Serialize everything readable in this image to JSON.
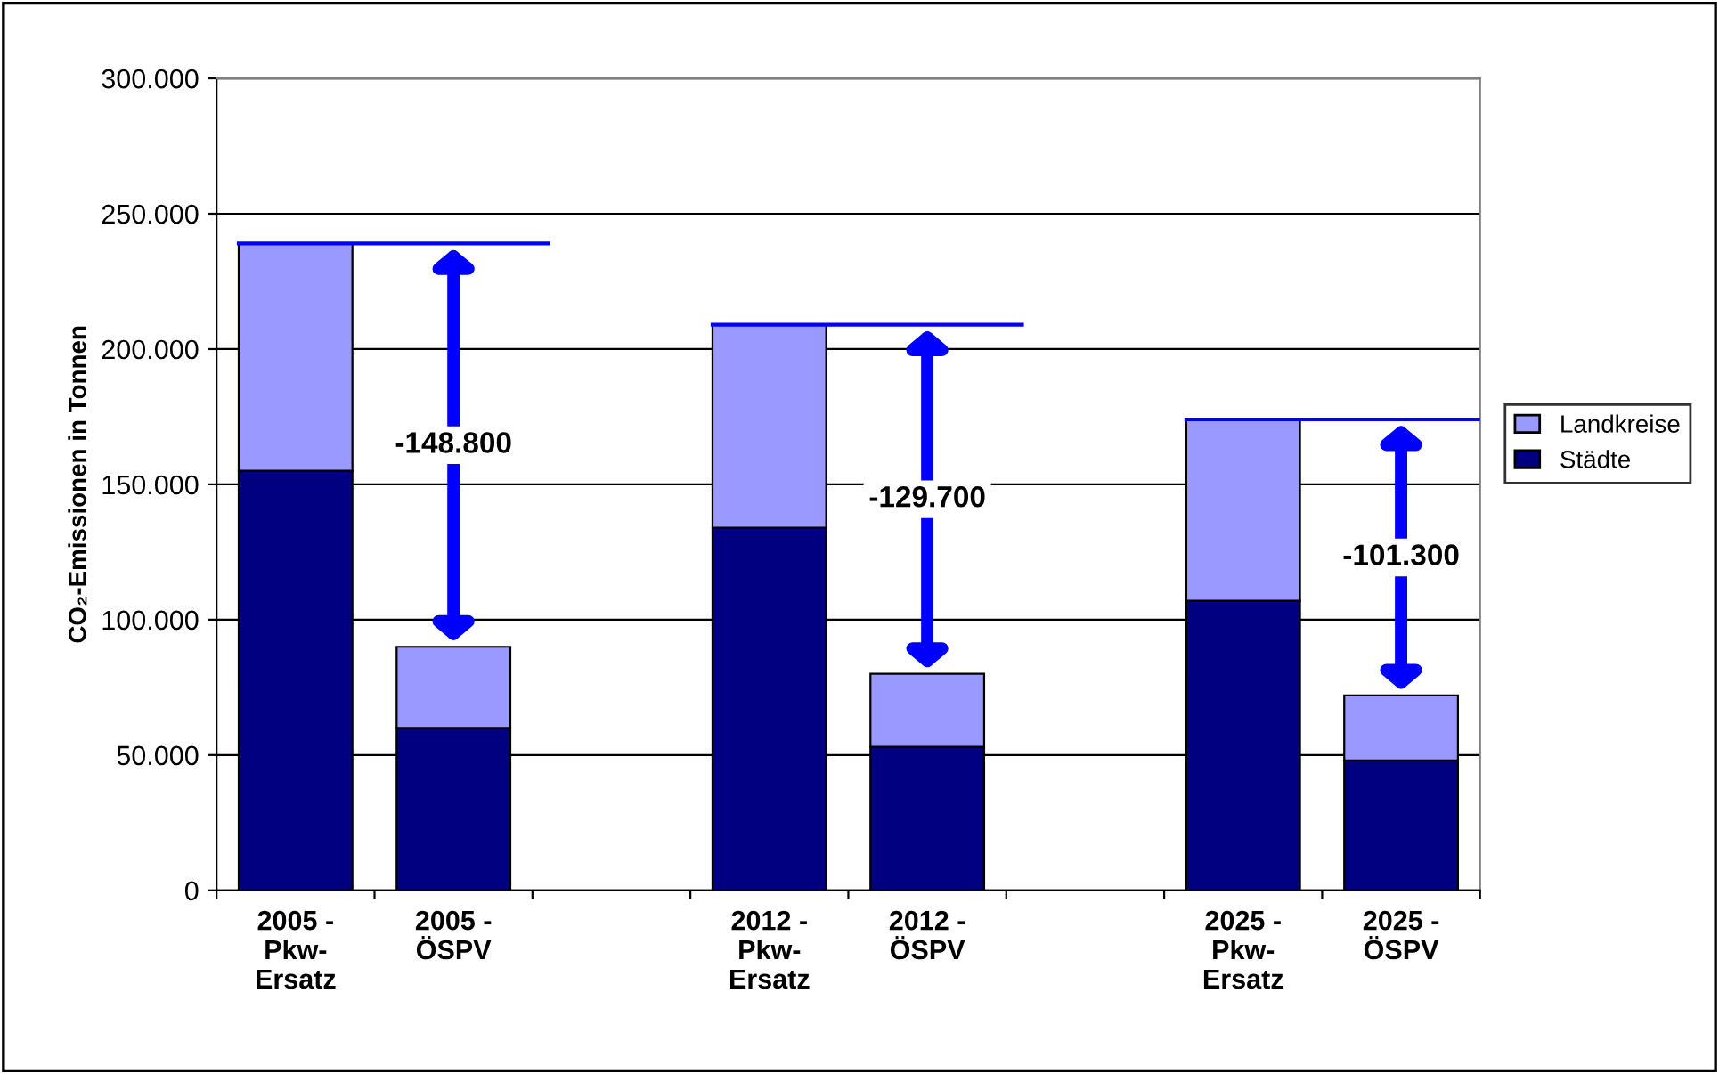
{
  "chart_data": {
    "type": "bar",
    "stacked": true,
    "ylabel": "CO₂-Emissionen in Tonnen",
    "categories": [
      "2005 -\nPkw-\nErsatz",
      "2005 -\nÖSPV",
      null,
      "2012 -\nPkw-\nErsatz",
      "2012 -\nÖSPV",
      null,
      "2025 -\nPkw-\nErsatz",
      "2025 -\nÖSPV"
    ],
    "series": [
      {
        "name": "Städte",
        "color": "#000080",
        "values": [
          155000,
          60000,
          null,
          134000,
          53000,
          null,
          107000,
          48000
        ]
      },
      {
        "name": "Landkreise",
        "color": "#9999ff",
        "values": [
          84000,
          30000,
          null,
          75000,
          27000,
          null,
          67000,
          24000
        ]
      }
    ],
    "ylim": [
      0,
      300000
    ],
    "yticks": [
      {
        "value": 0,
        "label": "0"
      },
      {
        "value": 50000,
        "label": "50.000"
      },
      {
        "value": 100000,
        "label": "100.000"
      },
      {
        "value": 150000,
        "label": "150.000"
      },
      {
        "value": 200000,
        "label": "200.000"
      },
      {
        "value": 250000,
        "label": "250.000"
      },
      {
        "value": 300000,
        "label": "300.000"
      }
    ],
    "grid": "y",
    "legend": "right",
    "annotations": [
      "-148.800",
      "-129.700",
      "-101.300"
    ]
  }
}
